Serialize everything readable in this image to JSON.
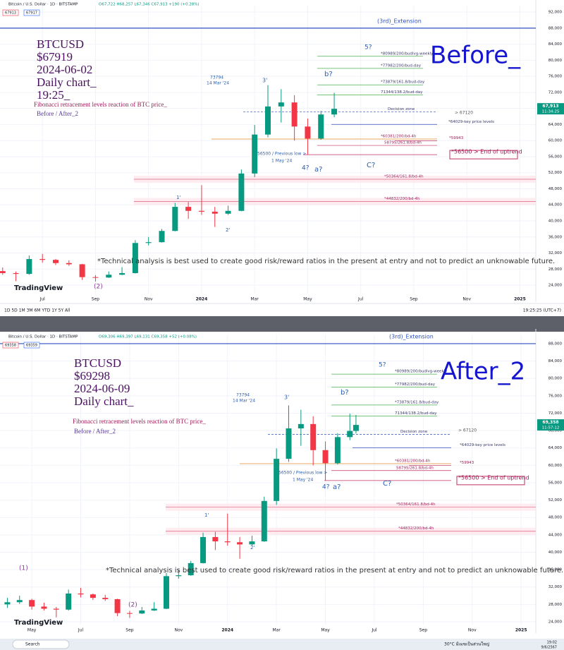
{
  "chart_data": [
    {
      "type": "candlestick",
      "header": "Bitcoin / U.S. Dollar · 1D · BITSTAMP",
      "ohlc": "O67,722 H68,257 L67,346 C67,913 +190 (+0.28%)",
      "price_tags": [
        "67913",
        "67917"
      ],
      "last_price": "67,913",
      "countdown": "11:34:25",
      "up_color": "#089981",
      "down_color": "#f23645",
      "x": [
        4.5,
        5,
        5.5,
        6,
        6.5,
        7,
        7.5,
        8,
        8.5,
        9,
        9.5,
        10,
        10.5,
        11,
        11.5,
        12,
        12.5,
        13,
        13.5,
        14,
        14.5,
        15,
        15.5,
        16,
        16.5,
        17
      ],
      "open": [
        27500,
        27000,
        26800,
        30500,
        30300,
        29500,
        29200,
        26000,
        25900,
        26600,
        27000,
        34500,
        34700,
        37500,
        43500,
        42500,
        42300,
        41800,
        42500,
        51800,
        61500,
        68500,
        69500,
        63500,
        60500,
        66500
      ],
      "high": [
        28400,
        27400,
        31400,
        31800,
        30500,
        30200,
        29300,
        26500,
        27400,
        28500,
        35200,
        36000,
        38000,
        44500,
        44700,
        48900,
        43500,
        43800,
        52800,
        63900,
        73800,
        72800,
        71300,
        65500,
        67400,
        71900
      ],
      "low": [
        26600,
        25000,
        26600,
        29600,
        29000,
        28800,
        25300,
        24900,
        25800,
        26500,
        26900,
        33900,
        34600,
        37400,
        40500,
        41500,
        38500,
        41500,
        42400,
        50900,
        60800,
        64500,
        60000,
        56500,
        60200,
        65800
      ],
      "close": [
        27000,
        26800,
        30500,
        30300,
        29500,
        29200,
        26000,
        25900,
        26600,
        27000,
        34500,
        34700,
        37500,
        43500,
        42500,
        42300,
        41800,
        42500,
        51800,
        61500,
        68500,
        69500,
        63500,
        60500,
        66500,
        67919
      ],
      "xlim": [
        4.4,
        24.6
      ],
      "ylim": [
        21900,
        93600
      ],
      "xticks": [
        {
          "value": 6,
          "label": "Jul"
        },
        {
          "value": 8,
          "label": "Sep"
        },
        {
          "value": 10,
          "label": "Nov"
        },
        {
          "value": 12,
          "label": "2024"
        },
        {
          "value": 14,
          "label": "Mar"
        },
        {
          "value": 16,
          "label": "May"
        },
        {
          "value": 18,
          "label": "Jul"
        },
        {
          "value": 20,
          "label": "Sep"
        },
        {
          "value": 22,
          "label": "Nov"
        },
        {
          "value": 24,
          "label": "2025"
        }
      ],
      "yticks": [
        {
          "value": 24000,
          "label": "24,000"
        },
        {
          "value": 28000,
          "label": "28,000"
        },
        {
          "value": 32000,
          "label": "32,000"
        },
        {
          "value": 36000,
          "label": "36,000"
        },
        {
          "value": 40000,
          "label": "40,000"
        },
        {
          "value": 44000,
          "label": "44,000"
        },
        {
          "value": 48000,
          "label": "48,000"
        },
        {
          "value": 52000,
          "label": "52,000"
        },
        {
          "value": 56000,
          "label": "56,000"
        },
        {
          "value": 60000,
          "label": "60,000"
        },
        {
          "value": 64000,
          "label": "64,000"
        },
        {
          "value": 68000,
          "label": "68,000"
        },
        {
          "value": 72000,
          "label": "72,000"
        },
        {
          "value": 76000,
          "label": "76,000"
        },
        {
          "value": 80000,
          "label": "80,000"
        },
        {
          "value": 84000,
          "label": "84,000"
        },
        {
          "value": 88000,
          "label": "88,000"
        },
        {
          "value": 92000,
          "label": "92,000"
        }
      ],
      "levels": [
        {
          "value": 88000,
          "label": "(3rd)_Extension"
        },
        {
          "value": 80989,
          "label": "*80989/200/budlvg-weekly"
        },
        {
          "value": 77982,
          "label": "*77982/200/bud-day"
        },
        {
          "value": 73879,
          "label": "*73879/161.8/bud-day"
        },
        {
          "value": 71344,
          "label": "71344/138.2/bud-day"
        },
        {
          "value": 67120,
          "label": "Decision zone"
        },
        {
          "value": 64029,
          "label": "*64029-key price levels"
        },
        {
          "value": 60381,
          "label": "*60381/200/bd-4h"
        },
        {
          "value": 59943,
          "label": "*59943"
        },
        {
          "value": 58795,
          "label": "58795/261.8/bd-4h"
        },
        {
          "value": 56500,
          "label": "*56500 > End of uptrend"
        },
        {
          "value": 50364,
          "label": "*50364/161.8/bd-4h"
        },
        {
          "value": 44832,
          "label": "*44832/200/bd-4h"
        }
      ],
      "annotations": [
        "BTCUSD",
        "$67919",
        "2024-06-02",
        "Daily chart_",
        "19:25_",
        "Fibonacci retracement levels reaction of BTC price_",
        "Before / After_2",
        "Before_",
        "*Technical analysis is best used to create good risk/reward ratios in the present at entry and not to predict an unknowable future.",
        "TradingView",
        "73794",
        "14 Mar '24",
        "56500 / Previous low >",
        "1 May '24",
        "5?",
        "b?",
        "3'",
        "4?",
        "a?",
        "C?",
        "1'",
        "2'",
        "(2)",
        "> 67120"
      ]
    },
    {
      "type": "candlestick",
      "header": "Bitcoin / U.S. Dollar · 1D · BITSTAMP",
      "ohlc": "O69,306 H69,397 L69,131 C69,358 +52 (+0.08%)",
      "price_tags": [
        "69358",
        "69359"
      ],
      "last_price": "69,358",
      "countdown": "11:57:12",
      "up_color": "#089981",
      "down_color": "#f23645",
      "x": [
        3,
        3.5,
        4,
        4.5,
        5,
        5.5,
        6,
        6.5,
        7,
        7.5,
        8,
        8.5,
        9,
        9.5,
        10,
        10.5,
        11,
        11.5,
        12,
        12.5,
        13,
        13.5,
        14,
        14.5,
        15,
        15.5,
        16,
        16.5,
        17,
        17.25
      ],
      "open": [
        28000,
        28500,
        29000,
        27500,
        27000,
        26800,
        30500,
        30300,
        29500,
        29200,
        26000,
        25900,
        26600,
        27000,
        34500,
        34700,
        37500,
        43500,
        42500,
        42300,
        41800,
        42500,
        51800,
        61500,
        68500,
        69500,
        63500,
        60500,
        66500,
        67919
      ],
      "high": [
        29500,
        30000,
        29300,
        28400,
        27400,
        31400,
        31800,
        30500,
        30200,
        29300,
        26500,
        27400,
        28500,
        35200,
        36000,
        38000,
        44500,
        44700,
        48900,
        43500,
        43800,
        52800,
        63900,
        73800,
        72800,
        71300,
        65500,
        67400,
        71900,
        71600
      ],
      "low": [
        27200,
        28100,
        26800,
        26600,
        25000,
        26600,
        29600,
        29000,
        28800,
        25300,
        24900,
        25800,
        26500,
        26900,
        33900,
        34600,
        37400,
        40500,
        41500,
        38500,
        41500,
        42400,
        50900,
        60800,
        64500,
        60000,
        56500,
        60200,
        65800,
        67300
      ],
      "close": [
        28500,
        29000,
        27500,
        27000,
        26800,
        30500,
        30300,
        29500,
        29200,
        26000,
        25900,
        26600,
        27000,
        34500,
        34700,
        37500,
        43500,
        42500,
        42300,
        41800,
        42500,
        51800,
        61500,
        68500,
        69500,
        63500,
        60500,
        66500,
        67919,
        69298
      ],
      "xlim": [
        2.7,
        24.6
      ],
      "ylim": [
        23350,
        90100
      ],
      "xticks": [
        {
          "value": 4,
          "label": "May"
        },
        {
          "value": 6,
          "label": "Jul"
        },
        {
          "value": 8,
          "label": "Sep"
        },
        {
          "value": 10,
          "label": "Nov"
        },
        {
          "value": 12,
          "label": "2024"
        },
        {
          "value": 14,
          "label": "Mar"
        },
        {
          "value": 16,
          "label": "May"
        },
        {
          "value": 18,
          "label": "Jul"
        },
        {
          "value": 20,
          "label": "Sep"
        },
        {
          "value": 22,
          "label": "Nov"
        },
        {
          "value": 24,
          "label": "2025"
        }
      ],
      "yticks": [
        {
          "value": 24000,
          "label": "24,000"
        },
        {
          "value": 28000,
          "label": "28,000"
        },
        {
          "value": 32000,
          "label": "32,000"
        },
        {
          "value": 36000,
          "label": "36,000"
        },
        {
          "value": 40000,
          "label": "40,000"
        },
        {
          "value": 44000,
          "label": "44,000"
        },
        {
          "value": 48000,
          "label": "48,000"
        },
        {
          "value": 52000,
          "label": "52,000"
        },
        {
          "value": 56000,
          "label": "56,000"
        },
        {
          "value": 60000,
          "label": "60,000"
        },
        {
          "value": 64000,
          "label": "64,000"
        },
        {
          "value": 68000,
          "label": "68,000"
        },
        {
          "value": 72000,
          "label": "72,000"
        },
        {
          "value": 76000,
          "label": "76,000"
        },
        {
          "value": 80000,
          "label": "80,000"
        },
        {
          "value": 84000,
          "label": "84,000"
        },
        {
          "value": 88000,
          "label": "88,000"
        }
      ],
      "levels": [
        {
          "value": 88000,
          "label": "(3rd)_Extension"
        },
        {
          "value": 80989,
          "label": "*80989/200/budlvg-weekly"
        },
        {
          "value": 77982,
          "label": "*77982/200/bud-day"
        },
        {
          "value": 73879,
          "label": "*73879/161.8/bud-day"
        },
        {
          "value": 71344,
          "label": "71344/138.2/bud-day"
        },
        {
          "value": 67120,
          "label": "Decision zone"
        },
        {
          "value": 64029,
          "label": "*64029-key price levels"
        },
        {
          "value": 60381,
          "label": "*60381/200/bd-4h"
        },
        {
          "value": 59943,
          "label": "*59943"
        },
        {
          "value": 58795,
          "label": "58795/261.8/bd-4h"
        },
        {
          "value": 56500,
          "label": "*56500 > End of uptrend"
        },
        {
          "value": 50364,
          "label": "*50364/161.8/bd-4h"
        },
        {
          "value": 44832,
          "label": "*44832/200/bd-4h"
        }
      ],
      "annotations": [
        "BTCUSD",
        "$69298",
        "2024-06-09",
        "Daily chart_",
        "Fibonacci retracement levels reaction of BTC price_",
        "Before / After_2",
        "After_2",
        "*Technical analysis is best used to create good risk/reward ratios in the present at entry and not to predict an unknowable future.",
        "TradingView",
        "73794",
        "14 Mar '24",
        "56500 / Previous low >",
        "1 May '24",
        "5?",
        "b?",
        "3'",
        "4?",
        "a?",
        "C?",
        "1'",
        "2'",
        "(2)",
        "(1)",
        "> 67120"
      ]
    }
  ],
  "toolbar": {
    "timeframes": "1D  5D  1M  3M  6M  YTD  1Y  5Y  All",
    "clock": "19:25:25 (UTC+7)"
  },
  "taskbar": {
    "search": "Search",
    "weather": "30°C มีเมฆเป็นส่วนใหญ่",
    "time": "19:02",
    "date": "9/6/2567"
  }
}
